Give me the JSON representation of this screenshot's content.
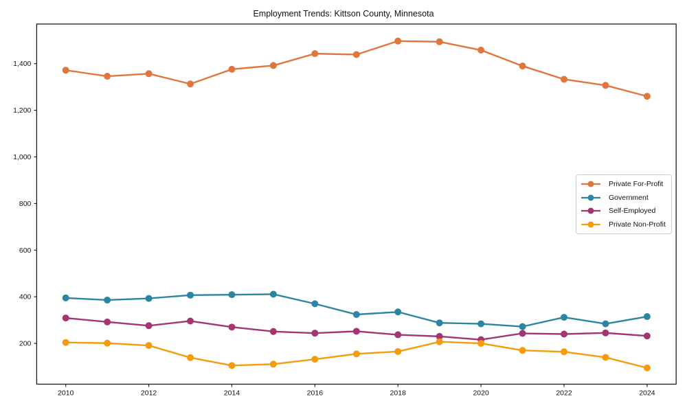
{
  "title": "Employment Trends: Kittson County, Minnesota",
  "chart_data": {
    "type": "line",
    "title": "Employment Trends: Kittson County, Minnesota",
    "xlabel": "",
    "ylabel": "",
    "x": [
      2010,
      2011,
      2012,
      2013,
      2014,
      2015,
      2016,
      2017,
      2018,
      2019,
      2020,
      2021,
      2022,
      2023,
      2024
    ],
    "series": [
      {
        "name": "Private For-Profit",
        "color": "#E1763C",
        "values": [
          1372,
          1346,
          1357,
          1313,
          1376,
          1392,
          1443,
          1439,
          1497,
          1494,
          1458,
          1390,
          1333,
          1307,
          1260
        ]
      },
      {
        "name": "Government",
        "color": "#2B85A3",
        "values": [
          395,
          386,
          393,
          407,
          409,
          411,
          370,
          324,
          335,
          288,
          284,
          272,
          312,
          284,
          315
        ]
      },
      {
        "name": "Self-Employed",
        "color": "#A23572",
        "values": [
          309,
          292,
          276,
          296,
          270,
          251,
          244,
          252,
          237,
          230,
          216,
          243,
          240,
          245,
          232
        ]
      },
      {
        "name": "Private Non-Profit",
        "color": "#F59C0C",
        "values": [
          204,
          201,
          191,
          139,
          105,
          111,
          132,
          155,
          165,
          207,
          200,
          170,
          164,
          140,
          95
        ]
      }
    ],
    "xlim": [
      2009.3,
      2024.7
    ],
    "ylim": [
      25,
      1570
    ],
    "xticks": [
      2010,
      2012,
      2014,
      2016,
      2018,
      2020,
      2022,
      2024
    ],
    "xtick_labels": [
      "2010",
      "2012",
      "2014",
      "2016",
      "2018",
      "2020",
      "2022",
      "2024"
    ],
    "yticks": [
      200,
      400,
      600,
      800,
      1000,
      1200,
      1400
    ],
    "ytick_labels": [
      "200",
      "400",
      "600",
      "800",
      "1,000",
      "1,200",
      "1,400"
    ],
    "grid": false,
    "legend_position": "center right",
    "axis_color": "#1a1a1a"
  }
}
